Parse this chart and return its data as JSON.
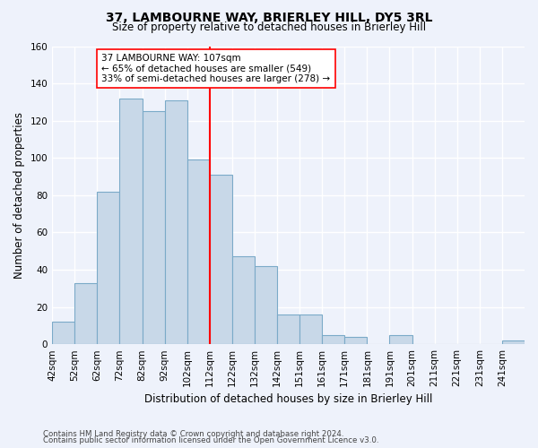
{
  "title1": "37, LAMBOURNE WAY, BRIERLEY HILL, DY5 3RL",
  "title2": "Size of property relative to detached houses in Brierley Hill",
  "xlabel": "Distribution of detached houses by size in Brierley Hill",
  "ylabel": "Number of detached properties",
  "footnote1": "Contains HM Land Registry data © Crown copyright and database right 2024.",
  "footnote2": "Contains public sector information licensed under the Open Government Licence v3.0.",
  "bin_labels": [
    "42sqm",
    "52sqm",
    "62sqm",
    "72sqm",
    "82sqm",
    "92sqm",
    "102sqm",
    "112sqm",
    "122sqm",
    "132sqm",
    "142sqm",
    "151sqm",
    "161sqm",
    "171sqm",
    "181sqm",
    "191sqm",
    "201sqm",
    "211sqm",
    "221sqm",
    "231sqm",
    "241sqm"
  ],
  "bar_values": [
    12,
    33,
    82,
    132,
    125,
    131,
    99,
    91,
    47,
    42,
    16,
    16,
    5,
    4,
    0,
    5,
    0,
    0,
    0,
    0,
    2
  ],
  "bar_color": "#c8d8e8",
  "bar_edge_color": "#7baac8",
  "vline_x": 107,
  "vline_color": "red",
  "annotation_text": "37 LAMBOURNE WAY: 107sqm\n← 65% of detached houses are smaller (549)\n33% of semi-detached houses are larger (278) →",
  "annotation_box_color": "white",
  "annotation_box_edge": "red",
  "ylim": [
    0,
    160
  ],
  "yticks": [
    0,
    20,
    40,
    60,
    80,
    100,
    120,
    140,
    160
  ],
  "background_color": "#eef2fb"
}
